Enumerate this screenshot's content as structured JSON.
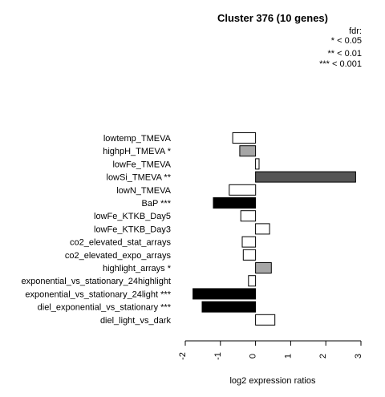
{
  "chart_data": {
    "type": "bar",
    "orientation": "horizontal",
    "title": "Cluster 376 (10 genes)",
    "xlabel": "log2 expression ratios",
    "ylabel": "",
    "xlim": [
      -2,
      3
    ],
    "xticks": [
      -2,
      -1,
      0,
      1,
      2,
      3
    ],
    "grid": false,
    "legend": {
      "placement": "top-right",
      "title": "fdr:",
      "entries": [
        "* < 0.05",
        "** < 0.01",
        "*** < 0.001"
      ]
    },
    "categories": [
      "lowtemp_TMEVA",
      "highpH_TMEVA *",
      "lowFe_TMEVA",
      "lowSi_TMEVA **",
      "lowN_TMEVA",
      "BaP ***",
      "lowFe_KTKB_Day5",
      "lowFe_KTKB_Day3",
      "co2_elevated_stat_arrays",
      "co2_elevated_expo_arrays",
      "highlight_arrays *",
      "exponential_vs_stationary_24highlight",
      "exponential_vs_stationary_24light ***",
      "diel_exponential_vs_stationary ***",
      "diel_light_vs_dark"
    ],
    "values": [
      -0.65,
      -0.45,
      0.1,
      2.85,
      -0.75,
      -1.2,
      -0.42,
      0.4,
      -0.38,
      -0.35,
      0.45,
      -0.2,
      -1.78,
      -1.52,
      0.55
    ],
    "bar_colors": [
      "#ffffff",
      "#a6a6a6",
      "#ffffff",
      "#555555",
      "#ffffff",
      "#000000",
      "#ffffff",
      "#ffffff",
      "#ffffff",
      "#ffffff",
      "#a6a6a6",
      "#ffffff",
      "#000000",
      "#000000",
      "#ffffff"
    ]
  }
}
